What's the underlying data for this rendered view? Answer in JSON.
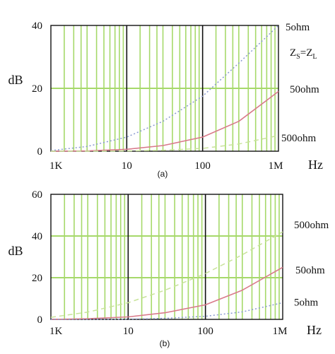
{
  "chart_data": [
    {
      "type": "line",
      "panel_label": "(a)",
      "xlabel": "Hz",
      "ylabel": "dB",
      "x_scale": "log",
      "xlim": [
        1000,
        1000000
      ],
      "ylim": [
        0,
        40
      ],
      "x_tick_labels": [
        "1K",
        "10",
        "100",
        "1M"
      ],
      "y_ticks": [
        0,
        20,
        40
      ],
      "grid": true,
      "annotation": {
        "main": "Z",
        "sub1": "S",
        "mid": "=Z",
        "sub2": "L"
      },
      "series": [
        {
          "name": "5ohm",
          "color": "#8a9ad0",
          "dash": "dotted",
          "x": [
            1000,
            3000,
            10000,
            30000,
            100000,
            300000,
            1000000
          ],
          "y": [
            0.2,
            1.5,
            4.5,
            9.5,
            17.5,
            28.0,
            40.0
          ]
        },
        {
          "name": "50ohm",
          "color": "#d97a8a",
          "dash": "solid",
          "x": [
            1000,
            3000,
            10000,
            30000,
            100000,
            300000,
            1000000
          ],
          "y": [
            0,
            0.1,
            0.6,
            1.8,
            4.5,
            9.5,
            19.0
          ]
        },
        {
          "name": "500ohm",
          "color": "#c8e39a",
          "dash": "dashed",
          "x": [
            1000,
            3000,
            10000,
            30000,
            100000,
            300000,
            1000000
          ],
          "y": [
            0,
            0,
            0.1,
            0.3,
            0.9,
            2.3,
            5.0
          ]
        }
      ]
    },
    {
      "type": "line",
      "panel_label": "(b)",
      "xlabel": "Hz",
      "ylabel": "dB",
      "x_scale": "log",
      "xlim": [
        1000,
        1000000
      ],
      "ylim": [
        0,
        60
      ],
      "x_tick_labels": [
        "1K",
        "10",
        "100",
        "1M"
      ],
      "y_ticks": [
        0,
        20,
        40,
        60
      ],
      "grid": true,
      "series": [
        {
          "name": "500ohm",
          "color": "#c8e39a",
          "dash": "dashed",
          "x": [
            1000,
            3000,
            10000,
            30000,
            100000,
            300000,
            1000000
          ],
          "y": [
            1.0,
            3.5,
            8.0,
            14.0,
            22.0,
            31.0,
            42.0
          ]
        },
        {
          "name": "50ohm",
          "color": "#d97a8a",
          "dash": "solid",
          "x": [
            1000,
            3000,
            10000,
            30000,
            100000,
            300000,
            1000000
          ],
          "y": [
            0,
            0.3,
            1.2,
            3.2,
            7.0,
            14.0,
            25.0
          ]
        },
        {
          "name": "5ohm",
          "color": "#8a9ad0",
          "dash": "dotted",
          "x": [
            1000,
            3000,
            10000,
            30000,
            100000,
            300000,
            1000000
          ],
          "y": [
            0,
            0,
            0.1,
            0.5,
            1.5,
            3.6,
            8.0
          ]
        }
      ]
    }
  ]
}
